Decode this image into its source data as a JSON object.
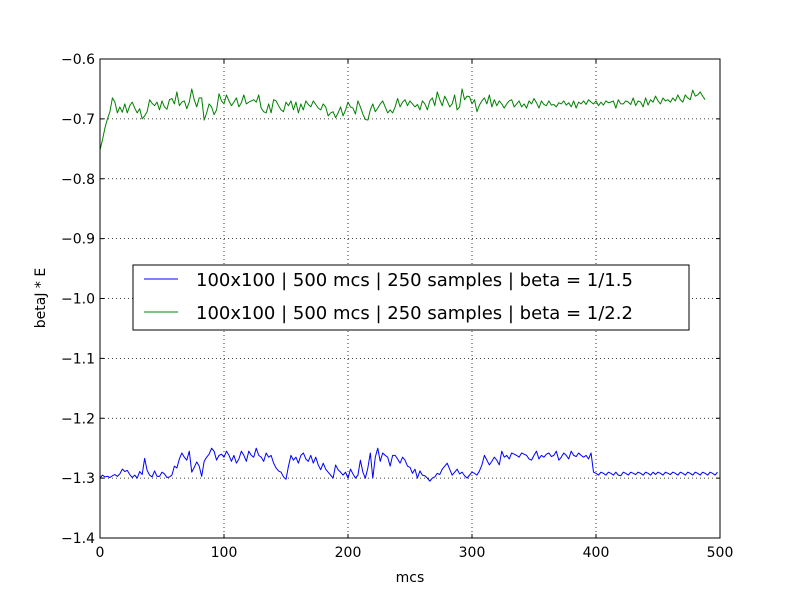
{
  "chart_data": {
    "type": "line",
    "title": "",
    "xlabel": "mcs",
    "ylabel": "betaJ * E",
    "xlim": [
      0,
      500
    ],
    "ylim": [
      -1.4,
      -0.6
    ],
    "xticks": [
      0,
      100,
      200,
      300,
      400,
      500
    ],
    "yticks": [
      -1.4,
      -1.3,
      -1.2,
      -1.1,
      -1.0,
      -0.9,
      -0.8,
      -0.7,
      -0.6
    ],
    "ytick_labels": [
      "−1.4",
      "−1.3",
      "−1.2",
      "−1.1",
      "−1.0",
      "−0.9",
      "−0.8",
      "−0.7",
      "−0.6"
    ],
    "grid": true,
    "legend_position": "center",
    "x_step": 2,
    "series": [
      {
        "name": "100x100 | 500 mcs | 250 samples | beta = 1/1.5",
        "color": "#0000ff",
        "values": [
          -1.3,
          -1.295,
          -1.298,
          -1.297,
          -1.299,
          -1.296,
          -1.294,
          -1.297,
          -1.293,
          -1.285,
          -1.289,
          -1.287,
          -1.294,
          -1.299,
          -1.295,
          -1.3,
          -1.289,
          -1.294,
          -1.267,
          -1.287,
          -1.295,
          -1.298,
          -1.288,
          -1.297,
          -1.297,
          -1.29,
          -1.293,
          -1.299,
          -1.298,
          -1.295,
          -1.28,
          -1.283,
          -1.268,
          -1.258,
          -1.265,
          -1.27,
          -1.255,
          -1.29,
          -1.282,
          -1.273,
          -1.28,
          -1.297,
          -1.272,
          -1.265,
          -1.26,
          -1.25,
          -1.255,
          -1.27,
          -1.262,
          -1.26,
          -1.265,
          -1.255,
          -1.262,
          -1.272,
          -1.262,
          -1.275,
          -1.268,
          -1.255,
          -1.262,
          -1.272,
          -1.255,
          -1.262,
          -1.265,
          -1.25,
          -1.262,
          -1.265,
          -1.272,
          -1.258,
          -1.265,
          -1.262,
          -1.275,
          -1.283,
          -1.288,
          -1.29,
          -1.298,
          -1.302,
          -1.28,
          -1.262,
          -1.27,
          -1.265,
          -1.275,
          -1.262,
          -1.258,
          -1.268,
          -1.272,
          -1.262,
          -1.275,
          -1.265,
          -1.278,
          -1.286,
          -1.275,
          -1.285,
          -1.29,
          -1.295,
          -1.3,
          -1.278,
          -1.286,
          -1.29,
          -1.295,
          -1.29,
          -1.3,
          -1.285,
          -1.293,
          -1.3,
          -1.295,
          -1.27,
          -1.29,
          -1.3,
          -1.283,
          -1.258,
          -1.3,
          -1.265,
          -1.25,
          -1.272,
          -1.258,
          -1.262,
          -1.265,
          -1.28,
          -1.262,
          -1.262,
          -1.268,
          -1.275,
          -1.265,
          -1.27,
          -1.28,
          -1.282,
          -1.292,
          -1.285,
          -1.3,
          -1.288,
          -1.295,
          -1.296,
          -1.3,
          -1.305,
          -1.3,
          -1.298,
          -1.292,
          -1.294,
          -1.285,
          -1.28,
          -1.275,
          -1.285,
          -1.295,
          -1.29,
          -1.285,
          -1.293,
          -1.29,
          -1.296,
          -1.3,
          -1.295,
          -1.29,
          -1.292,
          -1.295,
          -1.288,
          -1.278,
          -1.262,
          -1.27,
          -1.278,
          -1.272,
          -1.265,
          -1.27,
          -1.278,
          -1.255,
          -1.265,
          -1.262,
          -1.268,
          -1.258,
          -1.26,
          -1.262,
          -1.265,
          -1.258,
          -1.26,
          -1.262,
          -1.268,
          -1.27,
          -1.262,
          -1.255,
          -1.268,
          -1.262,
          -1.265,
          -1.26,
          -1.258,
          -1.264,
          -1.262,
          -1.255,
          -1.27,
          -1.265,
          -1.258,
          -1.262,
          -1.268,
          -1.255,
          -1.262,
          -1.264,
          -1.258,
          -1.262,
          -1.265,
          -1.262,
          -1.268,
          -1.258,
          -1.29,
          -1.292,
          -1.295,
          -1.29,
          -1.292,
          -1.295,
          -1.29,
          -1.292,
          -1.295,
          -1.29,
          -1.295,
          -1.296,
          -1.29,
          -1.292,
          -1.295,
          -1.29,
          -1.292,
          -1.294,
          -1.29,
          -1.292,
          -1.295,
          -1.29,
          -1.292,
          -1.295,
          -1.29,
          -1.294,
          -1.29,
          -1.292,
          -1.295,
          -1.29,
          -1.292,
          -1.294,
          -1.29,
          -1.292,
          -1.295,
          -1.29,
          -1.292,
          -1.295,
          -1.29,
          -1.292,
          -1.295,
          -1.29,
          -1.292,
          -1.295,
          -1.29,
          -1.292,
          -1.295,
          -1.29,
          -1.292,
          -1.295,
          -1.29
        ]
      },
      {
        "name": "100x100 | 500 mcs | 250 samples | beta = 1/2.2",
        "color": "#008000",
        "values": [
          -0.752,
          -0.735,
          -0.715,
          -0.7,
          -0.688,
          -0.665,
          -0.672,
          -0.69,
          -0.68,
          -0.689,
          -0.675,
          -0.69,
          -0.678,
          -0.672,
          -0.682,
          -0.69,
          -0.683,
          -0.7,
          -0.695,
          -0.688,
          -0.668,
          -0.674,
          -0.678,
          -0.672,
          -0.685,
          -0.67,
          -0.68,
          -0.684,
          -0.668,
          -0.666,
          -0.675,
          -0.655,
          -0.678,
          -0.672,
          -0.67,
          -0.683,
          -0.672,
          -0.65,
          -0.668,
          -0.68,
          -0.665,
          -0.665,
          -0.702,
          -0.69,
          -0.675,
          -0.68,
          -0.693,
          -0.685,
          -0.658,
          -0.67,
          -0.675,
          -0.66,
          -0.67,
          -0.678,
          -0.672,
          -0.665,
          -0.68,
          -0.673,
          -0.66,
          -0.675,
          -0.672,
          -0.67,
          -0.668,
          -0.672,
          -0.66,
          -0.682,
          -0.688,
          -0.69,
          -0.675,
          -0.69,
          -0.668,
          -0.67,
          -0.678,
          -0.685,
          -0.688,
          -0.672,
          -0.678,
          -0.67,
          -0.685,
          -0.672,
          -0.69,
          -0.675,
          -0.685,
          -0.67,
          -0.676,
          -0.68,
          -0.67,
          -0.676,
          -0.682,
          -0.685,
          -0.675,
          -0.68,
          -0.695,
          -0.69,
          -0.688,
          -0.698,
          -0.69,
          -0.68,
          -0.695,
          -0.685,
          -0.672,
          -0.68,
          -0.682,
          -0.692,
          -0.67,
          -0.68,
          -0.692,
          -0.701,
          -0.702,
          -0.685,
          -0.675,
          -0.688,
          -0.682,
          -0.675,
          -0.67,
          -0.68,
          -0.69,
          -0.685,
          -0.69,
          -0.68,
          -0.666,
          -0.68,
          -0.672,
          -0.668,
          -0.678,
          -0.67,
          -0.675,
          -0.68,
          -0.676,
          -0.685,
          -0.67,
          -0.675,
          -0.685,
          -0.67,
          -0.665,
          -0.678,
          -0.655,
          -0.668,
          -0.678,
          -0.662,
          -0.67,
          -0.68,
          -0.675,
          -0.66,
          -0.685,
          -0.68,
          -0.65,
          -0.668,
          -0.662,
          -0.663,
          -0.675,
          -0.668,
          -0.688,
          -0.677,
          -0.67,
          -0.665,
          -0.675,
          -0.66,
          -0.68,
          -0.668,
          -0.678,
          -0.67,
          -0.675,
          -0.682,
          -0.675,
          -0.67,
          -0.668,
          -0.68,
          -0.675,
          -0.67,
          -0.68,
          -0.675,
          -0.682,
          -0.67,
          -0.675,
          -0.666,
          -0.673,
          -0.682,
          -0.67,
          -0.676,
          -0.678,
          -0.67,
          -0.677,
          -0.676,
          -0.68,
          -0.673,
          -0.675,
          -0.67,
          -0.677,
          -0.673,
          -0.68,
          -0.67,
          -0.682,
          -0.672,
          -0.675,
          -0.67,
          -0.676,
          -0.668,
          -0.672,
          -0.675,
          -0.67,
          -0.678,
          -0.672,
          -0.677,
          -0.67,
          -0.673,
          -0.672,
          -0.67,
          -0.682,
          -0.668,
          -0.675,
          -0.675,
          -0.67,
          -0.672,
          -0.676,
          -0.665,
          -0.678,
          -0.67,
          -0.672,
          -0.68,
          -0.665,
          -0.677,
          -0.668,
          -0.672,
          -0.662,
          -0.67,
          -0.675,
          -0.665,
          -0.67,
          -0.668,
          -0.672,
          -0.665,
          -0.67,
          -0.66,
          -0.668,
          -0.672,
          -0.66,
          -0.665,
          -0.668,
          -0.652,
          -0.662,
          -0.66,
          -0.655,
          -0.662,
          -0.668
        ]
      }
    ]
  }
}
